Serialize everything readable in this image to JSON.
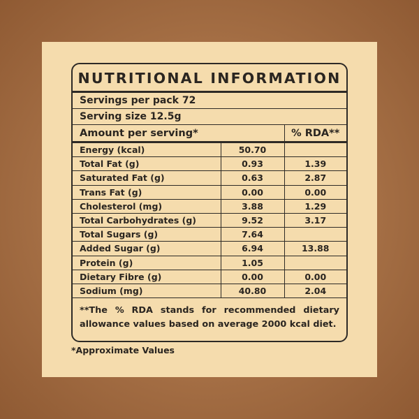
{
  "title": "NUTRITIONAL INFORMATION",
  "servings_per_pack": "Servings per pack 72",
  "serving_size": "Serving size 12.5g",
  "header": {
    "amount": "Amount per serving*",
    "rda": "% RDA**"
  },
  "rows": [
    {
      "name": "Energy (kcal)",
      "value": "50.70",
      "rda": ""
    },
    {
      "name": "Total Fat (g)",
      "value": "0.93",
      "rda": "1.39"
    },
    {
      "name": "Saturated Fat (g)",
      "value": "0.63",
      "rda": "2.87"
    },
    {
      "name": "Trans Fat (g)",
      "value": "0.00",
      "rda": "0.00"
    },
    {
      "name": "Cholesterol (mg)",
      "value": "3.88",
      "rda": "1.29"
    },
    {
      "name": "Total Carbohydrates (g)",
      "value": "9.52",
      "rda": "3.17"
    },
    {
      "name": "Total Sugars (g)",
      "value": "7.64",
      "rda": ""
    },
    {
      "name": "Added  Sugar (g)",
      "value": "6.94",
      "rda": "13.88"
    },
    {
      "name": "Protein (g)",
      "value": "1.05",
      "rda": ""
    },
    {
      "name": "Dietary Fibre (g)",
      "value": "0.00",
      "rda": "0.00"
    },
    {
      "name": "Sodium (mg)",
      "value": "40.80",
      "rda": "2.04"
    }
  ],
  "footnote_line1": "**The % RDA stands for recommended dietary",
  "footnote_line2": "allowance values based on average 2000 kcal diet.",
  "approximate_note": "*Approximate Values",
  "colors": {
    "background": "#a56f45",
    "card": "#f5dcad",
    "ink": "#2d2a26"
  }
}
